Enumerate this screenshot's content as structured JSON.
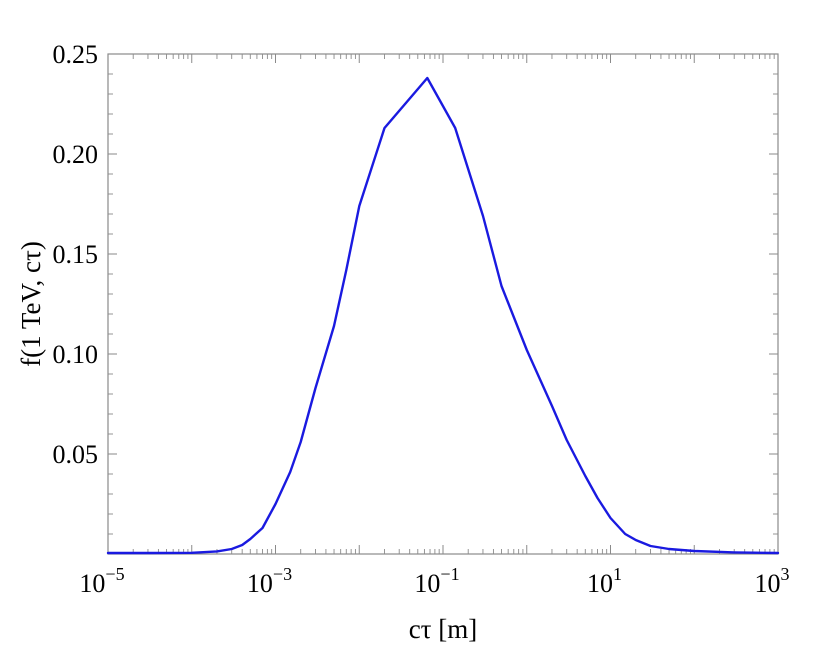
{
  "chart_data": {
    "type": "line",
    "title": "",
    "xlabel": "cτ [m]",
    "ylabel": "f(1 TeV, cτ)",
    "xscale": "log",
    "xlim": [
      1e-05,
      1000
    ],
    "ylim": [
      0,
      0.25
    ],
    "grid": false,
    "legend": "none",
    "x_ticks": [
      {
        "value": 1e-05,
        "base": "10",
        "exp": "−5"
      },
      {
        "value": 0.001,
        "base": "10",
        "exp": "−3"
      },
      {
        "value": 0.1,
        "base": "10",
        "exp": "−1"
      },
      {
        "value": 10,
        "base": "10",
        "exp": "1"
      },
      {
        "value": 1000,
        "base": "10",
        "exp": "3"
      }
    ],
    "y_ticks": [
      {
        "value": 0.05,
        "label": "0.05"
      },
      {
        "value": 0.1,
        "label": "0.10"
      },
      {
        "value": 0.15,
        "label": "0.15"
      },
      {
        "value": 0.2,
        "label": "0.20"
      },
      {
        "value": 0.25,
        "label": "0.25"
      }
    ],
    "series": [
      {
        "color": "#1a1ae0",
        "x": [
          1e-05,
          3e-05,
          0.0001,
          0.0002,
          0.0003,
          0.0004,
          0.0005,
          0.0007,
          0.001,
          0.0015,
          0.002,
          0.003,
          0.005,
          0.007,
          0.01,
          0.02,
          0.065,
          0.14,
          0.3,
          0.5,
          1,
          2,
          3,
          5,
          7,
          10,
          15,
          20,
          30,
          50,
          100,
          300,
          1000
        ],
        "y": [
          0.0005,
          0.0005,
          0.0006,
          0.0013,
          0.0025,
          0.0045,
          0.0075,
          0.013,
          0.025,
          0.041,
          0.056,
          0.083,
          0.114,
          0.142,
          0.174,
          0.213,
          0.238,
          0.213,
          0.169,
          0.134,
          0.102,
          0.074,
          0.057,
          0.039,
          0.028,
          0.018,
          0.01,
          0.007,
          0.004,
          0.0025,
          0.0015,
          0.0008,
          0.0005
        ]
      }
    ]
  }
}
